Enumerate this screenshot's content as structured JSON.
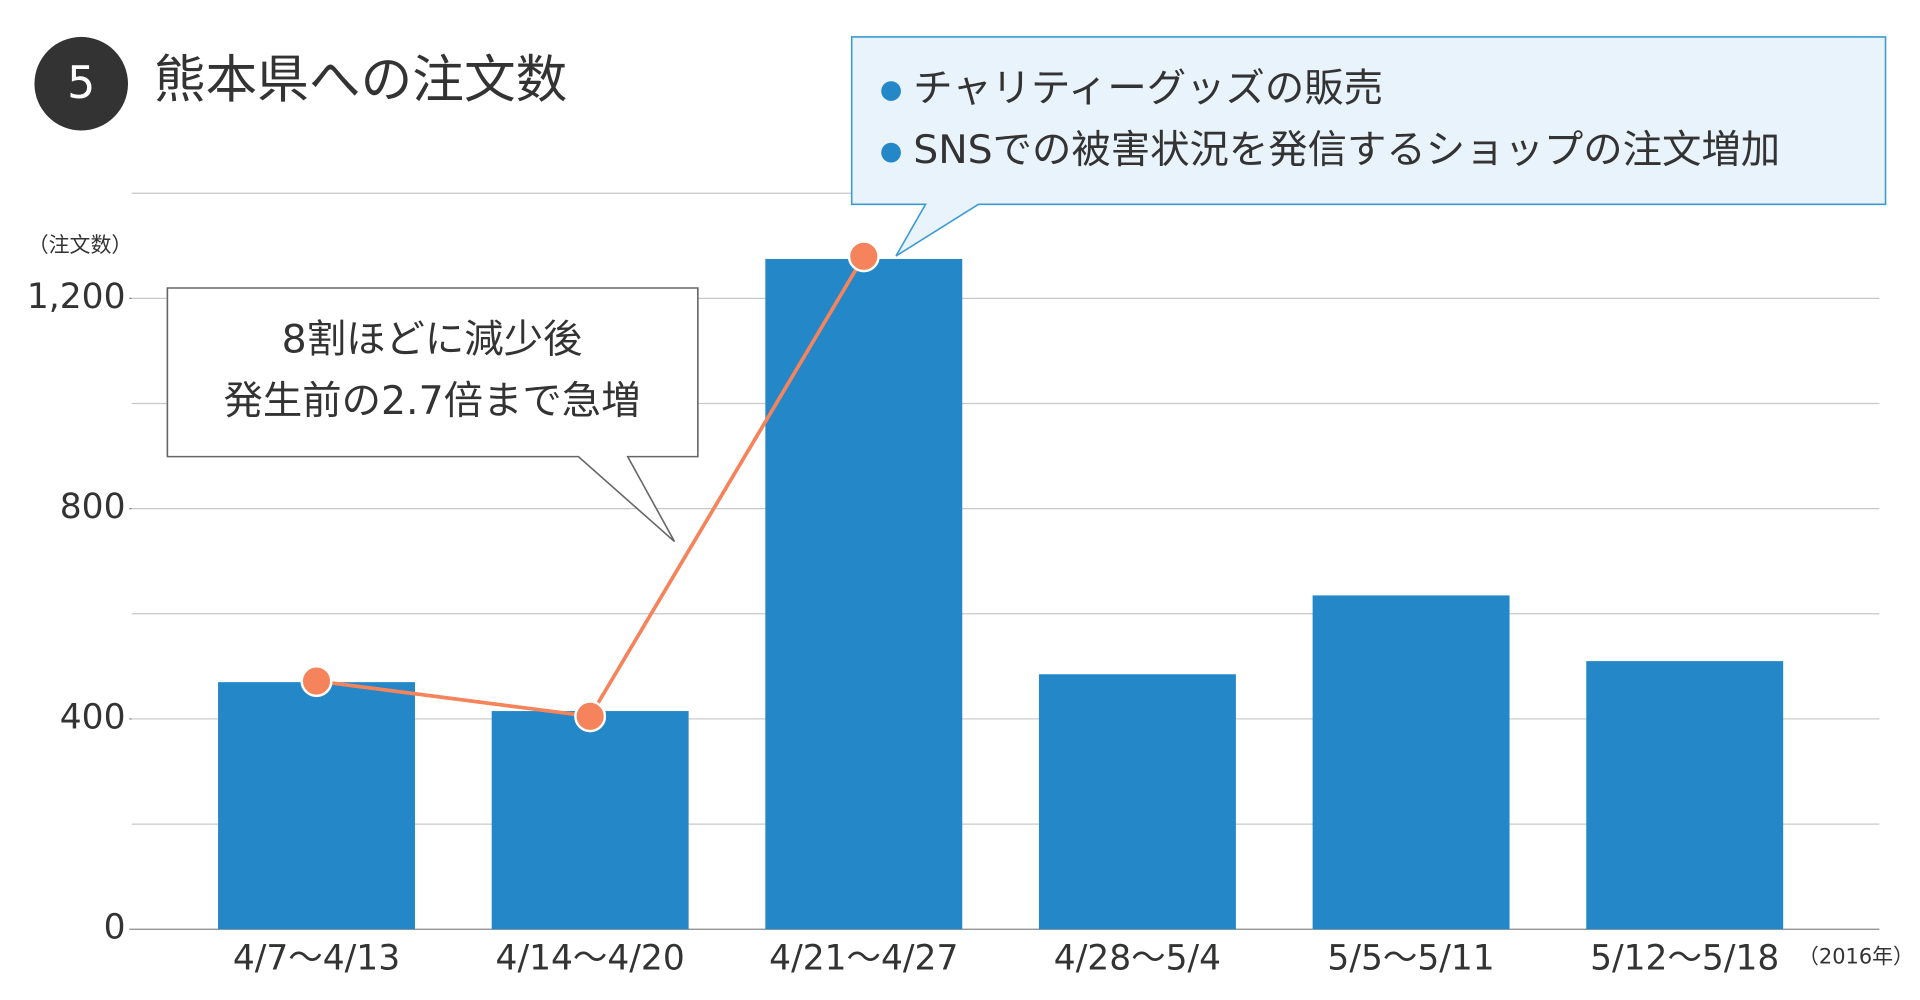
{
  "chart_data": {
    "type": "bar",
    "badge": "5",
    "title": "熊本県への注文数",
    "y_axis_label": "（注文数）",
    "x_axis_note": "（2016年）",
    "categories": [
      "4/7〜4/13",
      "4/14〜4/20",
      "4/21〜4/27",
      "4/28〜5/4",
      "5/5〜5/11",
      "5/12〜5/18"
    ],
    "values": [
      470,
      415,
      1275,
      485,
      635,
      510
    ],
    "color": "#2387c8",
    "line": {
      "color": "#f5845c",
      "values": [
        472,
        405,
        1280,
        null,
        null,
        null
      ]
    },
    "ylim": [
      0,
      1400
    ],
    "yticks": [
      0,
      400,
      800,
      {
        "value": 1200,
        "label": "1,200"
      }
    ],
    "ygrid": [
      0,
      200,
      400,
      600,
      800,
      1000,
      1200,
      1400
    ],
    "annotations": {
      "drop": [
        "8割ほどに減少後",
        "発生前の2.7倍まで急増"
      ],
      "reasons": [
        "チャリティーグッズの販売",
        "SNSでの被害状況を発信するショップの注文増加"
      ]
    }
  }
}
